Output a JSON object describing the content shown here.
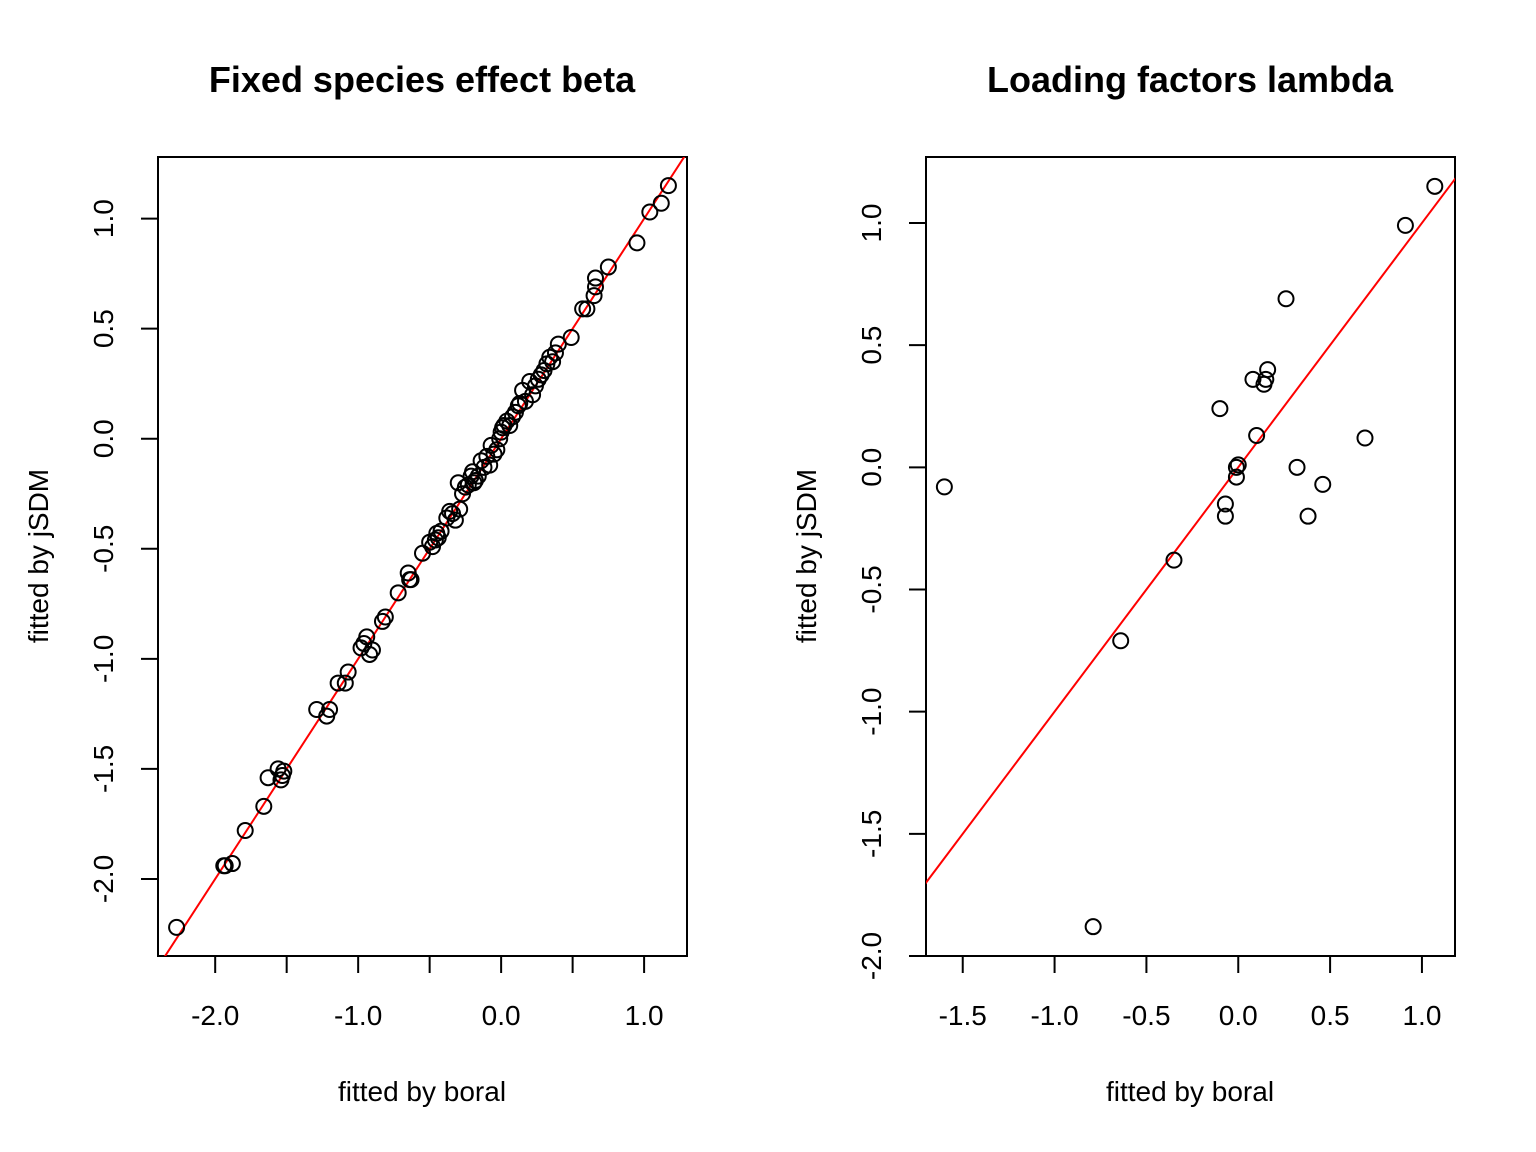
{
  "chart_data": [
    {
      "type": "scatter",
      "title": "Fixed species effect beta",
      "xlabel": "fitted by boral",
      "ylabel": "fitted by jSDM",
      "xlim": [
        -2.4,
        1.3
      ],
      "ylim": [
        -2.35,
        1.28
      ],
      "xticks": [
        -2.0,
        -1.5,
        -1.0,
        -0.5,
        0.0,
        0.5,
        1.0
      ],
      "xtick_labels": [
        "-2.0",
        "",
        "-1.0",
        "",
        "0.0",
        "",
        "1.0"
      ],
      "yticks": [
        -2.0,
        -1.5,
        -1.0,
        -0.5,
        0.0,
        0.5,
        1.0
      ],
      "ytick_labels": [
        "-2.0",
        "-1.5",
        "-1.0",
        "-0.5",
        "0.0",
        "0.5",
        "1.0"
      ],
      "reference_line": {
        "intercept": 0,
        "slope": 1,
        "color": "#ff0000"
      },
      "marker_color": "#000000",
      "x": [
        -2.27,
        -1.94,
        -1.93,
        -1.88,
        -1.79,
        -1.66,
        -1.63,
        -1.56,
        -1.54,
        -1.53,
        -1.52,
        -1.29,
        -1.22,
        -1.2,
        -1.14,
        -1.09,
        -1.07,
        -0.98,
        -0.96,
        -0.94,
        -0.92,
        -0.9,
        -0.83,
        -0.81,
        -0.72,
        -0.65,
        -0.64,
        -0.63,
        -0.55,
        -0.5,
        -0.48,
        -0.46,
        -0.45,
        -0.44,
        -0.42,
        -0.38,
        -0.36,
        -0.34,
        -0.32,
        -0.3,
        -0.29,
        -0.27,
        -0.25,
        -0.23,
        -0.21,
        -0.2,
        -0.19,
        -0.18,
        -0.16,
        -0.14,
        -0.12,
        -0.1,
        -0.08,
        -0.07,
        -0.05,
        -0.03,
        -0.01,
        0.0,
        0.01,
        0.02,
        0.04,
        0.06,
        0.08,
        0.1,
        0.12,
        0.13,
        0.15,
        0.17,
        0.2,
        0.22,
        0.24,
        0.26,
        0.28,
        0.3,
        0.32,
        0.34,
        0.36,
        0.38,
        0.4,
        0.49,
        0.57,
        0.6,
        0.65,
        0.66,
        0.66,
        0.75,
        0.95,
        1.04,
        1.12,
        1.17
      ],
      "y": [
        -2.22,
        -1.94,
        -1.94,
        -1.93,
        -1.78,
        -1.67,
        -1.54,
        -1.5,
        -1.55,
        -1.53,
        -1.51,
        -1.23,
        -1.26,
        -1.23,
        -1.11,
        -1.11,
        -1.06,
        -0.95,
        -0.93,
        -0.9,
        -0.98,
        -0.96,
        -0.83,
        -0.81,
        -0.7,
        -0.61,
        -0.64,
        -0.64,
        -0.52,
        -0.47,
        -0.49,
        -0.46,
        -0.43,
        -0.45,
        -0.42,
        -0.36,
        -0.33,
        -0.34,
        -0.37,
        -0.2,
        -0.32,
        -0.25,
        -0.22,
        -0.21,
        -0.17,
        -0.15,
        -0.2,
        -0.19,
        -0.17,
        -0.1,
        -0.13,
        -0.08,
        -0.12,
        -0.03,
        -0.07,
        -0.05,
        0.0,
        0.03,
        0.05,
        0.06,
        0.08,
        0.06,
        0.1,
        0.12,
        0.15,
        0.16,
        0.22,
        0.17,
        0.26,
        0.2,
        0.24,
        0.27,
        0.29,
        0.31,
        0.34,
        0.37,
        0.35,
        0.39,
        0.43,
        0.46,
        0.59,
        0.59,
        0.65,
        0.69,
        0.73,
        0.78,
        0.89,
        1.03,
        1.07,
        1.15
      ]
    },
    {
      "type": "scatter",
      "title": "Loading factors lambda",
      "xlabel": "fitted by boral",
      "ylabel": "fitted by jSDM",
      "xlim": [
        -1.7,
        1.18
      ],
      "ylim": [
        -2.0,
        1.27
      ],
      "xticks": [
        -1.5,
        -1.0,
        -0.5,
        0.0,
        0.5,
        1.0
      ],
      "xtick_labels": [
        "-1.5",
        "-1.0",
        "-0.5",
        "0.0",
        "0.5",
        "1.0"
      ],
      "yticks": [
        -2.0,
        -1.5,
        -1.0,
        -0.5,
        0.0,
        0.5,
        1.0
      ],
      "ytick_labels": [
        "-2.0",
        "-1.5",
        "-1.0",
        "-0.5",
        "0.0",
        "0.5",
        "1.0"
      ],
      "reference_line": {
        "intercept": 0,
        "slope": 1,
        "color": "#ff0000"
      },
      "marker_color": "#000000",
      "x": [
        -1.6,
        -0.79,
        -0.64,
        -0.35,
        -0.1,
        -0.07,
        -0.07,
        0.0,
        -0.01,
        -0.01,
        0.08,
        0.1,
        0.14,
        0.15,
        0.16,
        0.26,
        0.32,
        0.38,
        0.46,
        0.69,
        0.91,
        1.07
      ],
      "y": [
        -0.08,
        -1.88,
        -0.71,
        -0.38,
        0.24,
        -0.15,
        -0.2,
        0.01,
        0.0,
        -0.04,
        0.36,
        0.13,
        0.34,
        0.36,
        0.4,
        0.69,
        0.0,
        -0.2,
        -0.07,
        0.12,
        0.99,
        1.15
      ]
    }
  ]
}
